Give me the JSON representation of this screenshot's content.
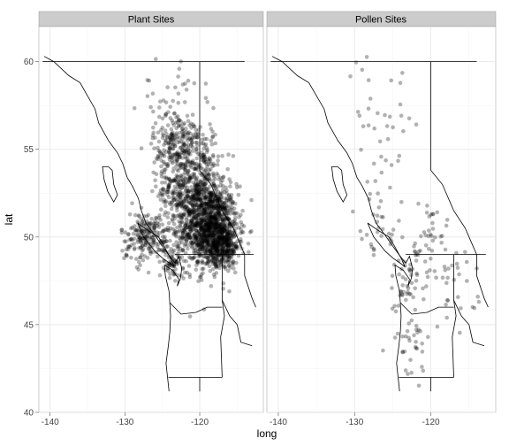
{
  "chart_data": {
    "type": "scatter",
    "xlabel": "long",
    "ylabel": "lat",
    "xlim": [
      -141.5,
      -111.5
    ],
    "ylim": [
      40,
      62
    ],
    "x_ticks": [
      -140,
      -130,
      -120
    ],
    "x_tick_labels": [
      "-140",
      "-130",
      "-120"
    ],
    "y_ticks": [
      40,
      45,
      50,
      55,
      60
    ],
    "y_tick_labels": [
      "40",
      "45",
      "50",
      "55",
      "60"
    ],
    "grid": true,
    "point_color": "#000000",
    "point_alpha": 0.3,
    "facets": [
      {
        "label": "Plant Sites",
        "clusters": [
          {
            "lon": -118.5,
            "lat": 50.5,
            "sd_lon": 1.8,
            "sd_lat": 1.2,
            "n": 1200
          },
          {
            "lon": -121.5,
            "lat": 52.5,
            "sd_lon": 2.0,
            "sd_lat": 1.2,
            "n": 450
          },
          {
            "lon": -123.0,
            "lat": 55.3,
            "sd_lon": 1.6,
            "sd_lat": 1.0,
            "n": 260
          },
          {
            "lon": -127.0,
            "lat": 50.0,
            "sd_lon": 1.8,
            "sd_lat": 0.7,
            "n": 220
          },
          {
            "lon": -116.5,
            "lat": 49.5,
            "sd_lon": 0.9,
            "sd_lat": 0.5,
            "n": 180
          },
          {
            "lon": -124.0,
            "lat": 58.5,
            "sd_lon": 2.5,
            "sd_lat": 1.0,
            "n": 30
          },
          {
            "lon": -119.0,
            "lat": 54.0,
            "sd_lon": 1.2,
            "sd_lat": 1.2,
            "n": 80
          },
          {
            "lon": -123.5,
            "lat": 48.5,
            "sd_lon": 0.6,
            "sd_lat": 0.4,
            "n": 60
          }
        ]
      },
      {
        "label": "Pollen Sites",
        "clusters": [
          {
            "lon": -123.0,
            "lat": 47.5,
            "sd_lon": 1.5,
            "sd_lat": 1.0,
            "n": 55
          },
          {
            "lon": -122.5,
            "lat": 44.0,
            "sd_lon": 1.5,
            "sd_lat": 1.2,
            "n": 35
          },
          {
            "lon": -117.0,
            "lat": 47.0,
            "sd_lon": 1.5,
            "sd_lat": 1.0,
            "n": 25
          },
          {
            "lon": -126.0,
            "lat": 55.0,
            "sd_lon": 3.0,
            "sd_lat": 2.5,
            "n": 45
          },
          {
            "lon": -120.0,
            "lat": 50.0,
            "sd_lon": 2.0,
            "sd_lat": 1.5,
            "n": 35
          },
          {
            "lon": -127.0,
            "lat": 50.0,
            "sd_lon": 1.5,
            "sd_lat": 0.8,
            "n": 20
          },
          {
            "lon": -130.0,
            "lat": 58.0,
            "sd_lon": 2.5,
            "sd_lat": 1.5,
            "n": 15
          }
        ]
      }
    ],
    "map_outline": {
      "coast": [
        [
          -140.8,
          60.3
        ],
        [
          -139.5,
          60.0
        ],
        [
          -137.5,
          59.2
        ],
        [
          -136.0,
          58.8
        ],
        [
          -135.2,
          58.2
        ],
        [
          -134.0,
          57.3
        ],
        [
          -133.5,
          56.5
        ],
        [
          -132.2,
          55.5
        ],
        [
          -131.0,
          54.8
        ],
        [
          -130.3,
          54.2
        ],
        [
          -129.7,
          53.4
        ],
        [
          -129.0,
          52.9
        ],
        [
          -128.2,
          52.2
        ],
        [
          -127.8,
          51.5
        ],
        [
          -127.2,
          50.8
        ],
        [
          -126.0,
          50.1
        ],
        [
          -125.2,
          49.6
        ],
        [
          -124.2,
          49.0
        ],
        [
          -123.3,
          48.5
        ],
        [
          -122.8,
          48.9
        ],
        [
          -122.4,
          48.2
        ],
        [
          -122.6,
          47.6
        ],
        [
          -123.0,
          47.2
        ],
        [
          -122.8,
          47.6
        ],
        [
          -123.6,
          48.1
        ],
        [
          -124.7,
          48.4
        ],
        [
          -124.6,
          47.8
        ],
        [
          -124.1,
          46.9
        ],
        [
          -124.0,
          46.2
        ],
        [
          -123.9,
          45.5
        ],
        [
          -124.0,
          44.6
        ],
        [
          -124.2,
          43.8
        ],
        [
          -124.5,
          42.8
        ],
        [
          -124.3,
          42.0
        ],
        [
          -124.1,
          41.2
        ]
      ],
      "islands": [
        [
          [
            -128.3,
            50.8
          ],
          [
            -127.0,
            50.4
          ],
          [
            -125.5,
            50.0
          ],
          [
            -124.8,
            49.5
          ],
          [
            -123.8,
            48.7
          ],
          [
            -123.4,
            48.3
          ],
          [
            -124.0,
            48.5
          ],
          [
            -125.0,
            48.8
          ],
          [
            -126.0,
            49.2
          ],
          [
            -127.5,
            50.0
          ],
          [
            -128.3,
            50.8
          ]
        ],
        [
          [
            -132.2,
            54.0
          ],
          [
            -131.7,
            53.8
          ],
          [
            -131.5,
            53.0
          ],
          [
            -131.0,
            52.4
          ],
          [
            -131.5,
            52.0
          ],
          [
            -132.3,
            52.6
          ],
          [
            -132.8,
            53.3
          ],
          [
            -133.0,
            54.0
          ],
          [
            -132.2,
            54.0
          ]
        ]
      ],
      "borders": [
        [
          [
            -141.0,
            60.0
          ],
          [
            -114.0,
            60.0
          ]
        ],
        [
          [
            -120.0,
            60.0
          ],
          [
            -120.0,
            53.8
          ],
          [
            -118.5,
            53.0
          ],
          [
            -117.0,
            51.5
          ],
          [
            -115.5,
            50.5
          ],
          [
            -114.8,
            49.8
          ],
          [
            -114.0,
            49.0
          ]
        ],
        [
          [
            -123.3,
            49.0
          ],
          [
            -112.8,
            49.0
          ]
        ],
        [
          [
            -117.0,
            49.0
          ],
          [
            -117.0,
            46.4
          ],
          [
            -116.7,
            45.5
          ],
          [
            -117.2,
            44.3
          ],
          [
            -117.0,
            42.0
          ]
        ],
        [
          [
            -124.2,
            42.0
          ],
          [
            -117.0,
            42.0
          ]
        ],
        [
          [
            -124.0,
            46.25
          ],
          [
            -122.5,
            45.6
          ],
          [
            -120.5,
            45.7
          ],
          [
            -119.0,
            46.0
          ],
          [
            -117.0,
            46.0
          ]
        ],
        [
          [
            -117.0,
            46.4
          ],
          [
            -116.0,
            45.5
          ],
          [
            -115.0,
            45.0
          ],
          [
            -114.5,
            44.0
          ],
          [
            -113.0,
            43.8
          ]
        ],
        [
          [
            -120.0,
            42.0
          ],
          [
            -120.0,
            41.2
          ]
        ],
        [
          [
            -114.0,
            49.0
          ],
          [
            -114.0,
            47.8
          ],
          [
            -113.0,
            46.5
          ],
          [
            -112.5,
            46.0
          ]
        ]
      ]
    }
  }
}
